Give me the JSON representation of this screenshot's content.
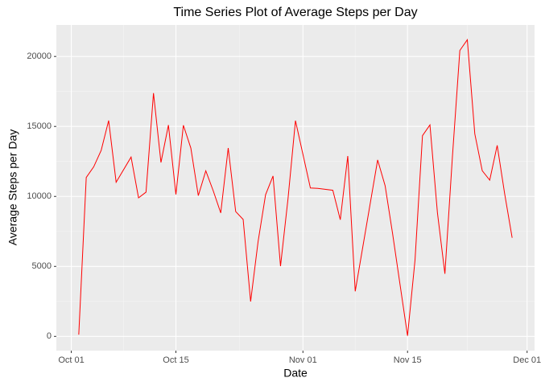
{
  "chart_data": {
    "type": "line",
    "title": "Time Series Plot of Average Steps per Day",
    "x_label": "Date",
    "y_label": "Average Steps per Day",
    "x": [
      "Oct 02",
      "Oct 03",
      "Oct 04",
      "Oct 05",
      "Oct 06",
      "Oct 07",
      "Oct 09",
      "Oct 10",
      "Oct 11",
      "Oct 12",
      "Oct 13",
      "Oct 14",
      "Oct 15",
      "Oct 16",
      "Oct 17",
      "Oct 18",
      "Oct 19",
      "Oct 20",
      "Oct 21",
      "Oct 22",
      "Oct 23",
      "Oct 24",
      "Oct 25",
      "Oct 26",
      "Oct 27",
      "Oct 28",
      "Oct 29",
      "Oct 30",
      "Oct 31",
      "Nov 02",
      "Nov 03",
      "Nov 05",
      "Nov 06",
      "Nov 07",
      "Nov 08",
      "Nov 11",
      "Nov 12",
      "Nov 13",
      "Nov 15",
      "Nov 16",
      "Nov 17",
      "Nov 18",
      "Nov 19",
      "Nov 20",
      "Nov 21",
      "Nov 22",
      "Nov 23",
      "Nov 24",
      "Nov 25",
      "Nov 26",
      "Nov 27",
      "Nov 28",
      "Nov 29"
    ],
    "series": [
      {
        "name": "steps",
        "color": "#ff0000",
        "values": [
          126,
          11352,
          12116,
          13294,
          15420,
          11015,
          12811,
          9900,
          10304,
          17382,
          12426,
          15098,
          10139,
          15084,
          13452,
          10056,
          11829,
          10395,
          8821,
          13460,
          8918,
          8355,
          2492,
          6778,
          10119,
          11458,
          5018,
          9819,
          15414,
          10600,
          10571,
          10439,
          8334,
          12883,
          3219,
          12608,
          10765,
          7336,
          41,
          5441,
          14339,
          15110,
          8841,
          4472,
          12787,
          20427,
          21194,
          14478,
          11834,
          11162,
          13646,
          10183,
          7047
        ]
      }
    ],
    "xlim": [
      "Sep 29",
      "Dec 02"
    ],
    "xticks": [
      "Oct 01",
      "Oct 15",
      "Nov 01",
      "Nov 15",
      "Dec 01"
    ],
    "ylim": [
      -1017,
      22252
    ],
    "yticks": [
      0,
      5000,
      10000,
      15000,
      20000
    ],
    "grid": true
  }
}
